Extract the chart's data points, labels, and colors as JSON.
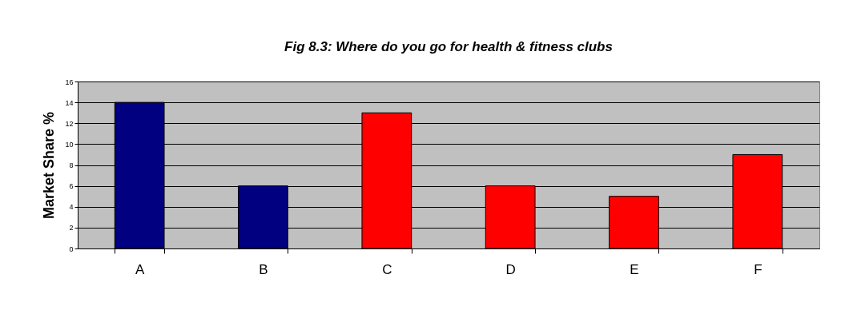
{
  "chart_data": {
    "type": "bar",
    "title": "Fig 8.3: Where do you go for health & fitness clubs",
    "ylabel": "Market Share %",
    "categories": [
      "A",
      "B",
      "C",
      "D",
      "E",
      "F"
    ],
    "values": [
      14,
      6,
      13,
      6,
      5,
      9
    ],
    "colors": [
      "#000080",
      "#000080",
      "#ff0000",
      "#ff0000",
      "#ff0000",
      "#ff0000"
    ],
    "ylim": [
      0,
      16
    ],
    "yticks": [
      0,
      2,
      4,
      6,
      8,
      10,
      12,
      14,
      16
    ],
    "grid": "y",
    "legend": false
  }
}
